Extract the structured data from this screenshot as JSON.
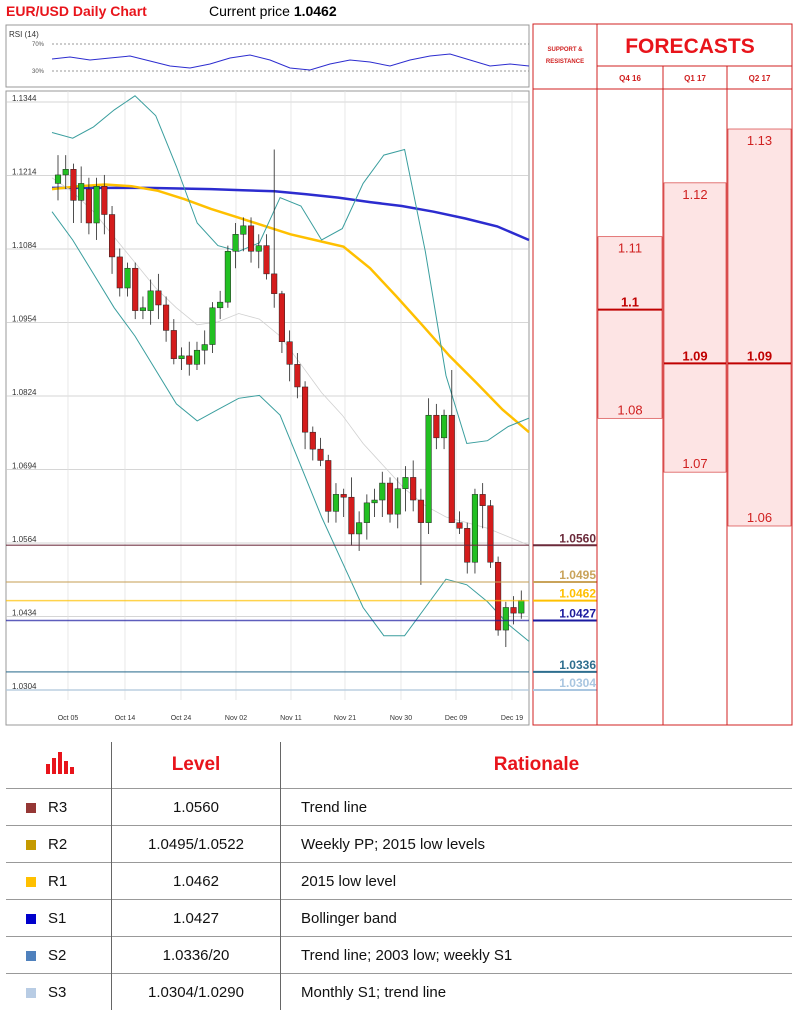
{
  "header": {
    "title": "EUR/USD Daily Chart",
    "current_price_label": "Current price",
    "current_price": "1.0462"
  },
  "rsi": {
    "label": "RSI (14)",
    "upper": "70%",
    "lower": "30%"
  },
  "chart_data": {
    "type": "candlestick",
    "title": "EUR/USD Daily Chart",
    "y_ticks": [
      "1.1344",
      "1.1214",
      "1.1084",
      "1.0954",
      "1.0824",
      "1.0694",
      "1.0564",
      "1.0434",
      "1.0304"
    ],
    "ylim": [
      1.028,
      1.1344
    ],
    "x_ticks": [
      "Oct 05",
      "Oct 14",
      "Oct 24",
      "Nov 02",
      "Nov 11",
      "Nov 21",
      "Nov 30",
      "Dec 09",
      "Dec 19"
    ],
    "grid": true,
    "candles": [
      [
        1.12,
        1.125,
        1.117,
        1.1215
      ],
      [
        1.1215,
        1.125,
        1.119,
        1.1225
      ],
      [
        1.1225,
        1.1235,
        1.113,
        1.117
      ],
      [
        1.117,
        1.123,
        1.113,
        1.12
      ],
      [
        1.119,
        1.121,
        1.111,
        1.113
      ],
      [
        1.113,
        1.121,
        1.11,
        1.1195
      ],
      [
        1.1195,
        1.1215,
        1.111,
        1.1145
      ],
      [
        1.1145,
        1.116,
        1.104,
        1.107
      ],
      [
        1.107,
        1.1085,
        1.1,
        1.1015
      ],
      [
        1.1015,
        1.106,
        1.1,
        1.105
      ],
      [
        1.105,
        1.106,
        1.096,
        1.0975
      ],
      [
        1.0975,
        1.1,
        1.096,
        1.098
      ],
      [
        1.0975,
        1.103,
        1.095,
        1.101
      ],
      [
        1.101,
        1.104,
        1.096,
        1.0985
      ],
      [
        1.0985,
        1.1,
        1.092,
        1.094
      ],
      [
        1.094,
        1.096,
        1.088,
        1.089
      ],
      [
        1.089,
        1.091,
        1.087,
        1.0895
      ],
      [
        1.0895,
        1.092,
        1.086,
        1.088
      ],
      [
        1.088,
        1.092,
        1.087,
        1.0905
      ],
      [
        1.0905,
        1.094,
        1.088,
        1.0915
      ],
      [
        1.0915,
        1.099,
        1.09,
        1.098
      ],
      [
        1.098,
        1.101,
        1.096,
        1.099
      ],
      [
        1.099,
        1.109,
        1.098,
        1.108
      ],
      [
        1.108,
        1.113,
        1.105,
        1.111
      ],
      [
        1.111,
        1.114,
        1.108,
        1.1125
      ],
      [
        1.1125,
        1.114,
        1.106,
        1.108
      ],
      [
        1.108,
        1.111,
        1.105,
        1.109
      ],
      [
        1.109,
        1.111,
        1.103,
        1.104
      ],
      [
        1.104,
        1.126,
        1.098,
        1.1005
      ],
      [
        1.1005,
        1.101,
        1.09,
        1.092
      ],
      [
        1.092,
        1.094,
        1.085,
        1.088
      ],
      [
        1.088,
        1.09,
        1.082,
        1.084
      ],
      [
        1.084,
        1.085,
        1.073,
        1.076
      ],
      [
        1.076,
        1.077,
        1.071,
        1.073
      ],
      [
        1.073,
        1.075,
        1.07,
        1.071
      ],
      [
        1.071,
        1.072,
        1.06,
        1.062
      ],
      [
        1.062,
        1.067,
        1.06,
        1.065
      ],
      [
        1.065,
        1.066,
        1.061,
        1.0645
      ],
      [
        1.0645,
        1.068,
        1.056,
        1.058
      ],
      [
        1.058,
        1.062,
        1.055,
        1.06
      ],
      [
        1.06,
        1.065,
        1.057,
        1.0635
      ],
      [
        1.0635,
        1.066,
        1.061,
        1.064
      ],
      [
        1.064,
        1.069,
        1.061,
        1.067
      ],
      [
        1.067,
        1.068,
        1.06,
        1.0615
      ],
      [
        1.0615,
        1.068,
        1.059,
        1.066
      ],
      [
        1.066,
        1.07,
        1.062,
        1.068
      ],
      [
        1.068,
        1.071,
        1.062,
        1.064
      ],
      [
        1.064,
        1.066,
        1.049,
        1.06
      ],
      [
        1.06,
        1.082,
        1.058,
        1.079
      ],
      [
        1.079,
        1.081,
        1.073,
        1.075
      ],
      [
        1.075,
        1.08,
        1.073,
        1.079
      ],
      [
        1.079,
        1.087,
        1.06,
        1.06
      ],
      [
        1.06,
        1.062,
        1.058,
        1.059
      ],
      [
        1.059,
        1.06,
        1.051,
        1.053
      ],
      [
        1.053,
        1.066,
        1.051,
        1.065
      ],
      [
        1.065,
        1.067,
        1.059,
        1.063
      ],
      [
        1.063,
        1.064,
        1.052,
        1.053
      ],
      [
        1.053,
        1.054,
        1.04,
        1.041
      ],
      [
        1.041,
        1.046,
        1.038,
        1.045
      ],
      [
        1.045,
        1.047,
        1.042,
        1.044
      ],
      [
        1.044,
        1.048,
        1.043,
        1.0462
      ]
    ],
    "overlays": [
      {
        "name": "200 SMA",
        "color": "#2c2ccf",
        "values": [
          1.1192,
          1.1192,
          1.1192,
          1.1192,
          1.1191,
          1.119,
          1.1188,
          1.1186,
          1.1181,
          1.1175,
          1.1167,
          1.116,
          1.115,
          1.1138,
          1.1124,
          1.11
        ]
      },
      {
        "name": "55 SMA",
        "color": "#ffc000",
        "values": [
          1.119,
          1.1195,
          1.1198,
          1.1195,
          1.1187,
          1.1172,
          1.1155,
          1.114,
          1.1125,
          1.111,
          1.1099,
          1.1088,
          1.105,
          1.1,
          1.0948,
          1.0895,
          1.0848,
          1.08,
          1.076
        ]
      },
      {
        "name": "Bollinger upper",
        "color": "#3a9e9e",
        "values": [
          1.129,
          1.128,
          1.13,
          1.133,
          1.1355,
          1.132,
          1.123,
          1.113,
          1.109,
          1.108,
          1.1095,
          1.1175,
          1.116,
          1.11,
          1.112,
          1.12,
          1.125,
          1.126,
          1.108,
          1.086,
          1.074,
          1.0745,
          1.077,
          1.0785
        ]
      },
      {
        "name": "Bollinger lower",
        "color": "#3a9e9e",
        "values": [
          1.115,
          1.11,
          1.104,
          1.098,
          1.093,
          1.087,
          1.081,
          1.078,
          1.08,
          1.082,
          1.0825,
          1.079,
          1.07,
          1.061,
          1.053,
          1.045,
          1.04,
          1.04,
          1.045,
          1.05,
          1.049,
          1.046,
          1.042,
          1.039
        ]
      },
      {
        "name": "Bollinger middle",
        "color": "#d0d0d0",
        "values": [
          1.121,
          1.1185,
          1.115,
          1.1105,
          1.106,
          1.1015,
          1.098,
          1.095,
          1.0955,
          1.097,
          1.096,
          1.093,
          1.088,
          1.083,
          1.079,
          1.074,
          1.07,
          1.066,
          1.063,
          1.061,
          1.06,
          1.059,
          1.0575,
          1.056
        ]
      }
    ],
    "levels": [
      {
        "label": "1.0560",
        "value": 1.056,
        "color": "#6b2a3a"
      },
      {
        "label": "1.0495",
        "value": 1.0495,
        "color": "#c9a35a"
      },
      {
        "label": "1.0462",
        "value": 1.0462,
        "color": "#ffc000"
      },
      {
        "label": "1.0427",
        "value": 1.0427,
        "color": "#1a1aa0"
      },
      {
        "label": "1.0336",
        "value": 1.0336,
        "color": "#2e6e8e"
      },
      {
        "label": "1.0304",
        "value": 1.0304,
        "color": "#a9c6e0"
      }
    ]
  },
  "support_resistance_label": "SUPPORT & RESISTANCE",
  "forecasts": {
    "title": "FORECASTS",
    "quarters": [
      {
        "label": "Q4 16",
        "high": "1.11",
        "consensus": "1.1",
        "low": "1.08",
        "hi_v": 1.11,
        "con_v": 1.1,
        "lo_v": 1.08
      },
      {
        "label": "Q1 17",
        "high": "1.12",
        "consensus": "1.09",
        "low": "1.07",
        "hi_v": 1.12,
        "con_v": 1.09,
        "lo_v": 1.07
      },
      {
        "label": "Q2 17",
        "high": "1.13",
        "consensus": "1.09",
        "low": "1.06",
        "hi_v": 1.13,
        "con_v": 1.09,
        "lo_v": 1.06
      }
    ]
  },
  "table": {
    "header_level": "Level",
    "header_rationale": "Rationale",
    "rows": [
      {
        "name": "R3",
        "level": "1.0560",
        "rationale": "Trend line",
        "color": "#953735"
      },
      {
        "name": "R2",
        "level": "1.0495/1.0522",
        "rationale": "Weekly PP; 2015 low levels",
        "color": "#c59a00"
      },
      {
        "name": "R1",
        "level": "1.0462",
        "rationale": "2015 low level",
        "color": "#ffc000"
      },
      {
        "name": "S1",
        "level": "1.0427",
        "rationale": "Bollinger band",
        "color": "#0000cc"
      },
      {
        "name": "S2",
        "level": "1.0336/20",
        "rationale": "Trend line; 2003 low; weekly S1",
        "color": "#4f81bd"
      },
      {
        "name": "S3",
        "level": "1.0304/1.0290",
        "rationale": "Monthly S1; trend line",
        "color": "#b8cce4"
      }
    ]
  }
}
